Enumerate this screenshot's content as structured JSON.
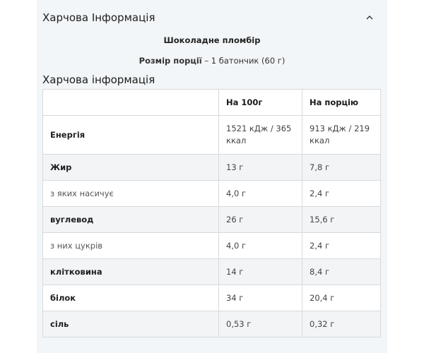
{
  "accordion": {
    "title": "Харчова Інформація",
    "icon": "chevron-up-icon"
  },
  "product_name": "Шоколадне пломбір",
  "serving": {
    "label": "Розмір порції",
    "separator": " – ",
    "value": "1 батончик (60 г)"
  },
  "section_title": "Харчова інформація",
  "table": {
    "headers": [
      "",
      "На 100г",
      "На порцію"
    ],
    "rows": [
      {
        "label": "Енергія",
        "per100": "1521 кДж / 365 ккал",
        "perServing": "913 кДж / 219 ккал",
        "bold": true
      },
      {
        "label": "Жир",
        "per100": "13 г",
        "perServing": "7,8 г",
        "bold": true
      },
      {
        "label": "з яких насичує",
        "per100": "4,0 г",
        "perServing": "2,4 г",
        "bold": false
      },
      {
        "label": "вуглевод",
        "per100": "26 г",
        "perServing": "15,6 г",
        "bold": true
      },
      {
        "label": "з них цукрів",
        "per100": "4,0 г",
        "perServing": "2,4 г",
        "bold": false
      },
      {
        "label": "клітковина",
        "per100": "14 г",
        "perServing": "8,4 г",
        "bold": true
      },
      {
        "label": "білок",
        "per100": "34 г",
        "perServing": "20,4 г",
        "bold": true
      },
      {
        "label": "сіль",
        "per100": "0,53 г",
        "perServing": "0,32 г",
        "bold": true
      }
    ]
  }
}
